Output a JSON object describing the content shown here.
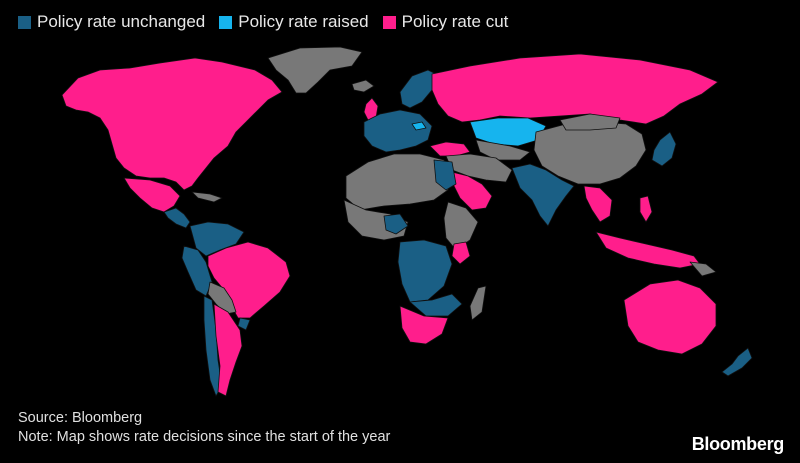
{
  "legend": {
    "items": [
      {
        "label": "Policy rate unchanged",
        "color": "#1a5f85"
      },
      {
        "label": "Policy rate raised",
        "color": "#16b4ee"
      },
      {
        "label": "Policy rate cut",
        "color": "#ff1e8c"
      }
    ]
  },
  "colors": {
    "unchanged": "#1a5f85",
    "raised": "#16b4ee",
    "cut": "#ff1e8c",
    "no_data": "#787878",
    "background": "#000000"
  },
  "source": "Source: Bloomberg",
  "note": "Note: Map shows rate decisions since the start of the year",
  "brand": "Bloomberg"
}
